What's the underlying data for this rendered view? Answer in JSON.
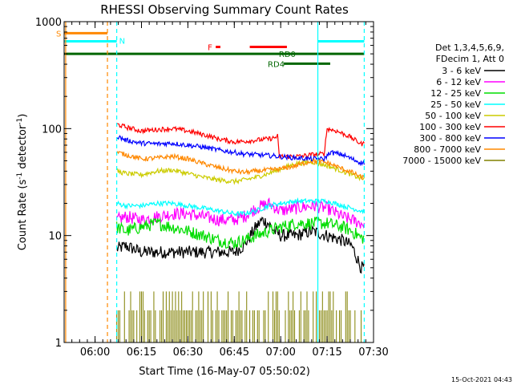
{
  "chart_data": {
    "type": "line",
    "title": "RHESSI Observing Summary Count Rates",
    "xlabel": "Start Time (16-May-07 05:50:02)",
    "ylabel_prefix": "Count Rate (s",
    "ylabel_sup": "-1",
    "ylabel_mid": " detector",
    "ylabel_sup2": "-1",
    "ylabel_suffix": ")",
    "yscale": "log",
    "ylim": [
      1,
      1000
    ],
    "xlim_min": [
      0,
      100
    ],
    "x_tick_values": [
      10,
      25,
      40,
      55,
      70,
      85,
      100
    ],
    "x_tick_labels": [
      "06:00",
      "06:15",
      "06:30",
      "06:45",
      "07:00",
      "07:15",
      "07:30"
    ],
    "y_tick_values": [
      1,
      10,
      100,
      1000
    ],
    "y_tick_labels": [
      "1",
      "10",
      "100",
      "1000"
    ],
    "legend_header": [
      "Det 1,3,4,5,6,9,",
      "FDecim 1, Att 0"
    ],
    "series": [
      {
        "name": "3 - 6 keV",
        "color": "#000000",
        "x_range": [
          17,
          97
        ],
        "points": [
          [
            17,
            7.5
          ],
          [
            20,
            8
          ],
          [
            25,
            7
          ],
          [
            30,
            7
          ],
          [
            35,
            7
          ],
          [
            40,
            7
          ],
          [
            45,
            7
          ],
          [
            50,
            7
          ],
          [
            55,
            7
          ],
          [
            58,
            8
          ],
          [
            62,
            12
          ],
          [
            64,
            14
          ],
          [
            66,
            13
          ],
          [
            68,
            11
          ],
          [
            70,
            10
          ],
          [
            75,
            10
          ],
          [
            80,
            11
          ],
          [
            85,
            10
          ],
          [
            90,
            9
          ],
          [
            93,
            8
          ],
          [
            96,
            5
          ]
        ]
      },
      {
        "name": "6 - 12 keV",
        "color": "#ff00ff",
        "x_range": [
          17,
          97
        ],
        "points": [
          [
            17,
            14
          ],
          [
            20,
            15
          ],
          [
            25,
            14
          ],
          [
            30,
            15
          ],
          [
            35,
            16
          ],
          [
            40,
            16
          ],
          [
            45,
            15
          ],
          [
            50,
            14
          ],
          [
            55,
            14
          ],
          [
            58,
            15
          ],
          [
            62,
            18
          ],
          [
            66,
            20
          ],
          [
            70,
            17
          ],
          [
            75,
            18
          ],
          [
            80,
            19
          ],
          [
            85,
            18
          ],
          [
            90,
            15
          ],
          [
            93,
            14
          ],
          [
            96,
            13
          ]
        ]
      },
      {
        "name": "12 - 25 keV",
        "color": "#00dd00",
        "x_range": [
          17,
          97
        ],
        "points": [
          [
            17,
            12
          ],
          [
            20,
            11
          ],
          [
            25,
            12
          ],
          [
            30,
            13
          ],
          [
            35,
            12
          ],
          [
            40,
            11
          ],
          [
            45,
            10
          ],
          [
            50,
            9
          ],
          [
            55,
            8.5
          ],
          [
            58,
            9
          ],
          [
            62,
            10
          ],
          [
            66,
            11
          ],
          [
            70,
            12
          ],
          [
            75,
            13
          ],
          [
            80,
            13
          ],
          [
            85,
            13
          ],
          [
            90,
            12
          ],
          [
            93,
            11
          ],
          [
            96,
            9.5
          ]
        ]
      },
      {
        "name": "25 - 50 keV",
        "color": "#00ffff",
        "x_range": [
          17,
          97
        ],
        "points": [
          [
            17,
            20
          ],
          [
            20,
            19
          ],
          [
            25,
            19
          ],
          [
            30,
            20
          ],
          [
            35,
            20
          ],
          [
            40,
            19
          ],
          [
            45,
            18
          ],
          [
            50,
            17
          ],
          [
            55,
            16
          ],
          [
            58,
            16
          ],
          [
            62,
            17
          ],
          [
            66,
            19
          ],
          [
            70,
            20
          ],
          [
            75,
            21
          ],
          [
            80,
            21
          ],
          [
            85,
            21
          ],
          [
            90,
            19
          ],
          [
            93,
            18
          ],
          [
            96,
            17
          ]
        ]
      },
      {
        "name": "50 - 100 keV",
        "color": "#cccc00",
        "x_range": [
          17,
          97
        ],
        "points": [
          [
            17,
            40
          ],
          [
            20,
            38
          ],
          [
            25,
            37
          ],
          [
            30,
            40
          ],
          [
            35,
            41
          ],
          [
            40,
            38
          ],
          [
            45,
            35
          ],
          [
            50,
            33
          ],
          [
            55,
            32
          ],
          [
            58,
            33
          ],
          [
            62,
            35
          ],
          [
            66,
            38
          ],
          [
            70,
            42
          ],
          [
            75,
            47
          ],
          [
            80,
            49
          ],
          [
            85,
            45
          ],
          [
            90,
            40
          ],
          [
            93,
            37
          ],
          [
            96,
            34
          ]
        ]
      },
      {
        "name": "100 - 300 keV",
        "color": "#ff0000",
        "x_range": [
          17,
          97
        ],
        "points": [
          [
            17,
            110
          ],
          [
            20,
            103
          ],
          [
            25,
            95
          ],
          [
            30,
            98
          ],
          [
            35,
            100
          ],
          [
            40,
            95
          ],
          [
            45,
            88
          ],
          [
            50,
            80
          ],
          [
            55,
            75
          ],
          [
            58,
            76
          ],
          [
            62,
            78
          ],
          [
            66,
            80
          ],
          [
            68,
            82
          ],
          [
            69,
            85
          ],
          [
            69.5,
            55
          ],
          [
            72,
            55
          ],
          [
            76,
            55
          ],
          [
            80,
            57
          ],
          [
            84,
            58
          ],
          [
            85,
            100
          ],
          [
            88,
            95
          ],
          [
            92,
            85
          ],
          [
            96,
            72
          ]
        ]
      },
      {
        "name": "300 - 800 keV",
        "color": "#0000ff",
        "x_range": [
          17,
          97
        ],
        "points": [
          [
            17,
            85
          ],
          [
            20,
            78
          ],
          [
            25,
            73
          ],
          [
            30,
            72
          ],
          [
            35,
            73
          ],
          [
            40,
            70
          ],
          [
            45,
            67
          ],
          [
            50,
            63
          ],
          [
            55,
            60
          ],
          [
            58,
            58
          ],
          [
            62,
            57
          ],
          [
            66,
            56
          ],
          [
            69,
            55
          ],
          [
            72,
            54
          ],
          [
            76,
            53
          ],
          [
            80,
            52
          ],
          [
            84,
            52
          ],
          [
            86,
            60
          ],
          [
            90,
            57
          ],
          [
            93,
            52
          ],
          [
            96,
            48
          ]
        ]
      },
      {
        "name": "800 - 7000 keV",
        "color": "#ff8800",
        "x_range": [
          17,
          97
        ],
        "points": [
          [
            17,
            60
          ],
          [
            20,
            57
          ],
          [
            25,
            52
          ],
          [
            30,
            53
          ],
          [
            35,
            55
          ],
          [
            40,
            52
          ],
          [
            45,
            47
          ],
          [
            50,
            43
          ],
          [
            55,
            40
          ],
          [
            58,
            39
          ],
          [
            62,
            40
          ],
          [
            66,
            41
          ],
          [
            70,
            42
          ],
          [
            75,
            45
          ],
          [
            80,
            50
          ],
          [
            85,
            48
          ],
          [
            90,
            42
          ],
          [
            93,
            39
          ],
          [
            96,
            35
          ]
        ]
      },
      {
        "name": "7000 - 15000 keV",
        "color": "#808000",
        "x_range": [
          17,
          97
        ],
        "points": []
      }
    ],
    "bars": [
      {
        "label": "S",
        "color": "#ff8800",
        "x": [
          0,
          14
        ],
        "y": 780
      },
      {
        "label": "N",
        "color": "#00ffff",
        "x": [
          0,
          17
        ],
        "y": 655
      },
      {
        "label": "N",
        "color": "#00ffff",
        "x": [
          82,
          97
        ],
        "y": 655
      },
      {
        "label": "F",
        "color": "#ff0000",
        "x": [
          49,
          50.5
        ],
        "y": 580
      },
      {
        "label": "",
        "color": "#ff0000",
        "x": [
          60,
          72
        ],
        "y": 580
      },
      {
        "label": "RD0",
        "color": "#006600",
        "x": [
          0,
          97
        ],
        "y": 500
      },
      {
        "label": "RD4",
        "color": "#006600",
        "x": [
          71,
          86
        ],
        "y": 405
      }
    ],
    "vlines": [
      {
        "x": 0.5,
        "color": "#ff8800",
        "style": "solid"
      },
      {
        "x": 14,
        "color": "#ff8800",
        "style": "dashed"
      },
      {
        "x": 17,
        "color": "#00ffff",
        "style": "dashed"
      },
      {
        "x": 82,
        "color": "#00ffff",
        "style": "solid"
      },
      {
        "x": 97,
        "color": "#00ffff",
        "style": "dashed"
      }
    ],
    "bar_labels": {
      "S": "S",
      "N": "N",
      "F": "F",
      "RD0": "RD0",
      "RD4": "RD4"
    }
  },
  "timestamp": "15-Oct-2021 04:43"
}
